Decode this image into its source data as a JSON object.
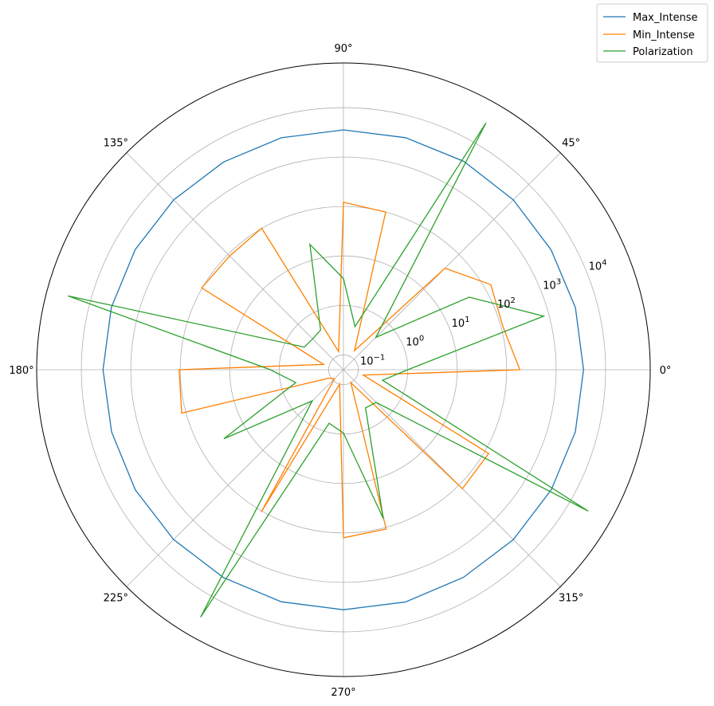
{
  "chart_data": {
    "type": "polar-line",
    "title": "",
    "radial_scale": "log",
    "rlim": [
      0.05,
      80000
    ],
    "radial_ticks": [
      {
        "value": 0.1,
        "label_base": "10",
        "label_exp": "−1"
      },
      {
        "value": 1,
        "label_base": "10",
        "label_exp": "0"
      },
      {
        "value": 10,
        "label_base": "10",
        "label_exp": "1"
      },
      {
        "value": 100,
        "label_base": "10",
        "label_exp": "2"
      },
      {
        "value": 1000,
        "label_base": "10",
        "label_exp": "3"
      },
      {
        "value": 10000,
        "label_base": "10",
        "label_exp": "4"
      }
    ],
    "angular_ticks": [
      "0°",
      "45°",
      "90°",
      "135°",
      "180°",
      "225°",
      "270°",
      "315°"
    ],
    "grid": true,
    "legend_position": "top-right",
    "angles_deg": [
      0,
      15,
      30,
      45,
      60,
      75,
      90,
      105,
      120,
      135,
      150,
      165,
      180,
      195,
      210,
      225,
      240,
      255,
      270,
      285,
      300,
      315,
      330,
      345
    ],
    "series": [
      {
        "name": "Max_Intense",
        "color": "#1f77b4",
        "values": [
          3580,
          3590,
          3530,
          3620,
          3670,
          3600,
          3540,
          3590,
          3550,
          3600,
          3640,
          3620,
          3640,
          3580,
          3630,
          3590,
          3570,
          3610,
          3570,
          3640,
          3540,
          3620,
          3560,
          3580
        ]
      },
      {
        "name": "Min_Intense",
        "color": "#ff7f00",
        "values": [
          185,
          110,
          138,
          40,
          0.14,
          100,
          122,
          0.12,
          101,
          90,
          102,
          0.13,
          105,
          122,
          0.11,
          0.09,
          105,
          0.1,
          125,
          108,
          0.1,
          126,
          123,
          0.13
        ]
      },
      {
        "name": "Polarization",
        "color": "#2ca02c",
        "values": [
          1.0,
          780,
          43,
          0.42,
          29000,
          0.4,
          3.5,
          21,
          0.42,
          0.38,
          0.41,
          29000,
          1.5,
          0.5,
          31,
          0.39,
          30000,
          0.66,
          0.95,
          65,
          0.39,
          0.43,
          26000,
          0.33
        ]
      }
    ]
  }
}
